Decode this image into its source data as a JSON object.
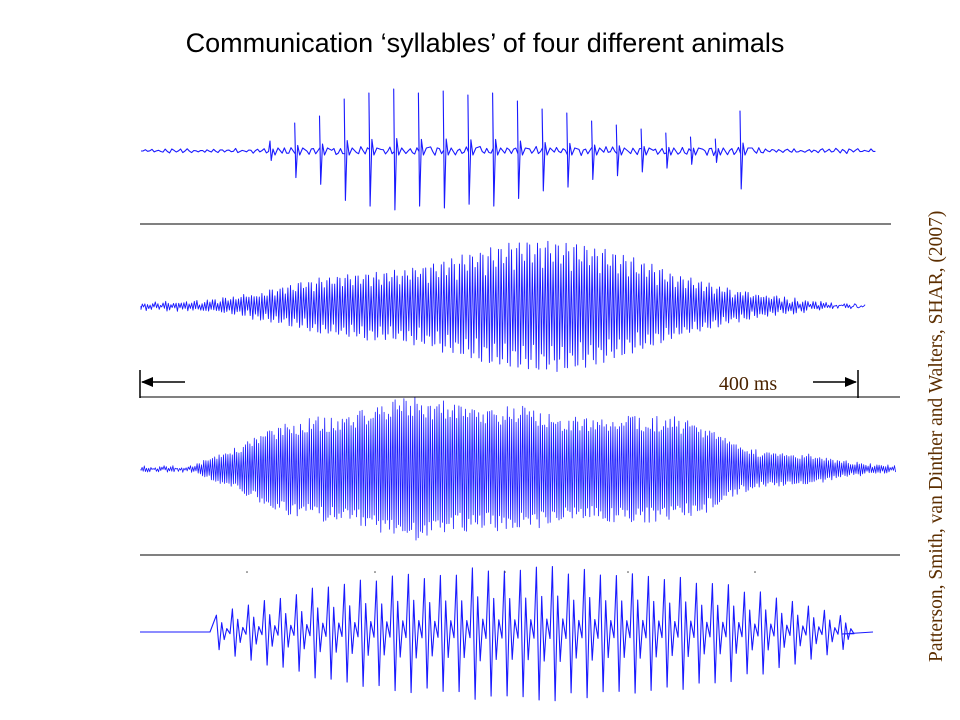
{
  "title": "Communication ‘syllables’ of four different animals",
  "scale_bar": {
    "label": "400 ms",
    "duration_ms": 400
  },
  "citation": "Patterson, Smith, van Dinther and Walters, SHAR, (2007)",
  "colors": {
    "waveform": "#1a1aff",
    "citation": "#5c2e00",
    "scale_label": "#4a2300",
    "divider": "#000000",
    "title": "#000000"
  },
  "waveforms": [
    {
      "kind": "click-train",
      "clicks": 20
    },
    {
      "kind": "modulated-tone",
      "envelope": "single-hump"
    },
    {
      "kind": "modulated-tone",
      "envelope": "multi-hump"
    },
    {
      "kind": "pulse-train",
      "pulses": 40
    }
  ]
}
